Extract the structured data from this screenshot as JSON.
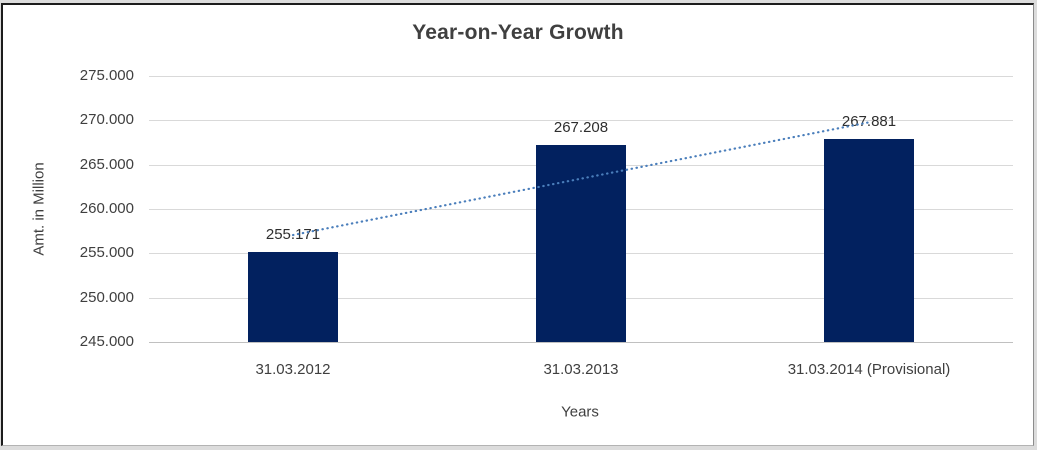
{
  "frame": {
    "outer_background": "#dcdcdc",
    "chart_background": "#ffffff"
  },
  "chart_data": {
    "type": "bar",
    "title": "Year-on-Year Growth",
    "xlabel": "Years",
    "ylabel": "Amt. in Million",
    "categories": [
      "31.03.2012",
      "31.03.2013",
      "31.03.2014 (Provisional)"
    ],
    "values": [
      255171,
      267208,
      267881
    ],
    "value_labels": [
      "255.171",
      "267.208",
      "267.881"
    ],
    "ylim": [
      245000,
      275000
    ],
    "ytick_step": 5000,
    "ytick_labels": [
      "245.000",
      "250.000",
      "255.000",
      "260.000",
      "265.000",
      "270.000",
      "275.000"
    ],
    "grid": true,
    "legend": "none",
    "bar_color": "#02215f",
    "gridline_color": "#d9d9d9",
    "axis_line_color": "#c0c0c0",
    "text_color": "#3f3f3f",
    "trendline": {
      "type": "linear",
      "style": "dotted",
      "color": "#4a7ebb",
      "start_value": 257065,
      "end_value": 269775
    }
  }
}
